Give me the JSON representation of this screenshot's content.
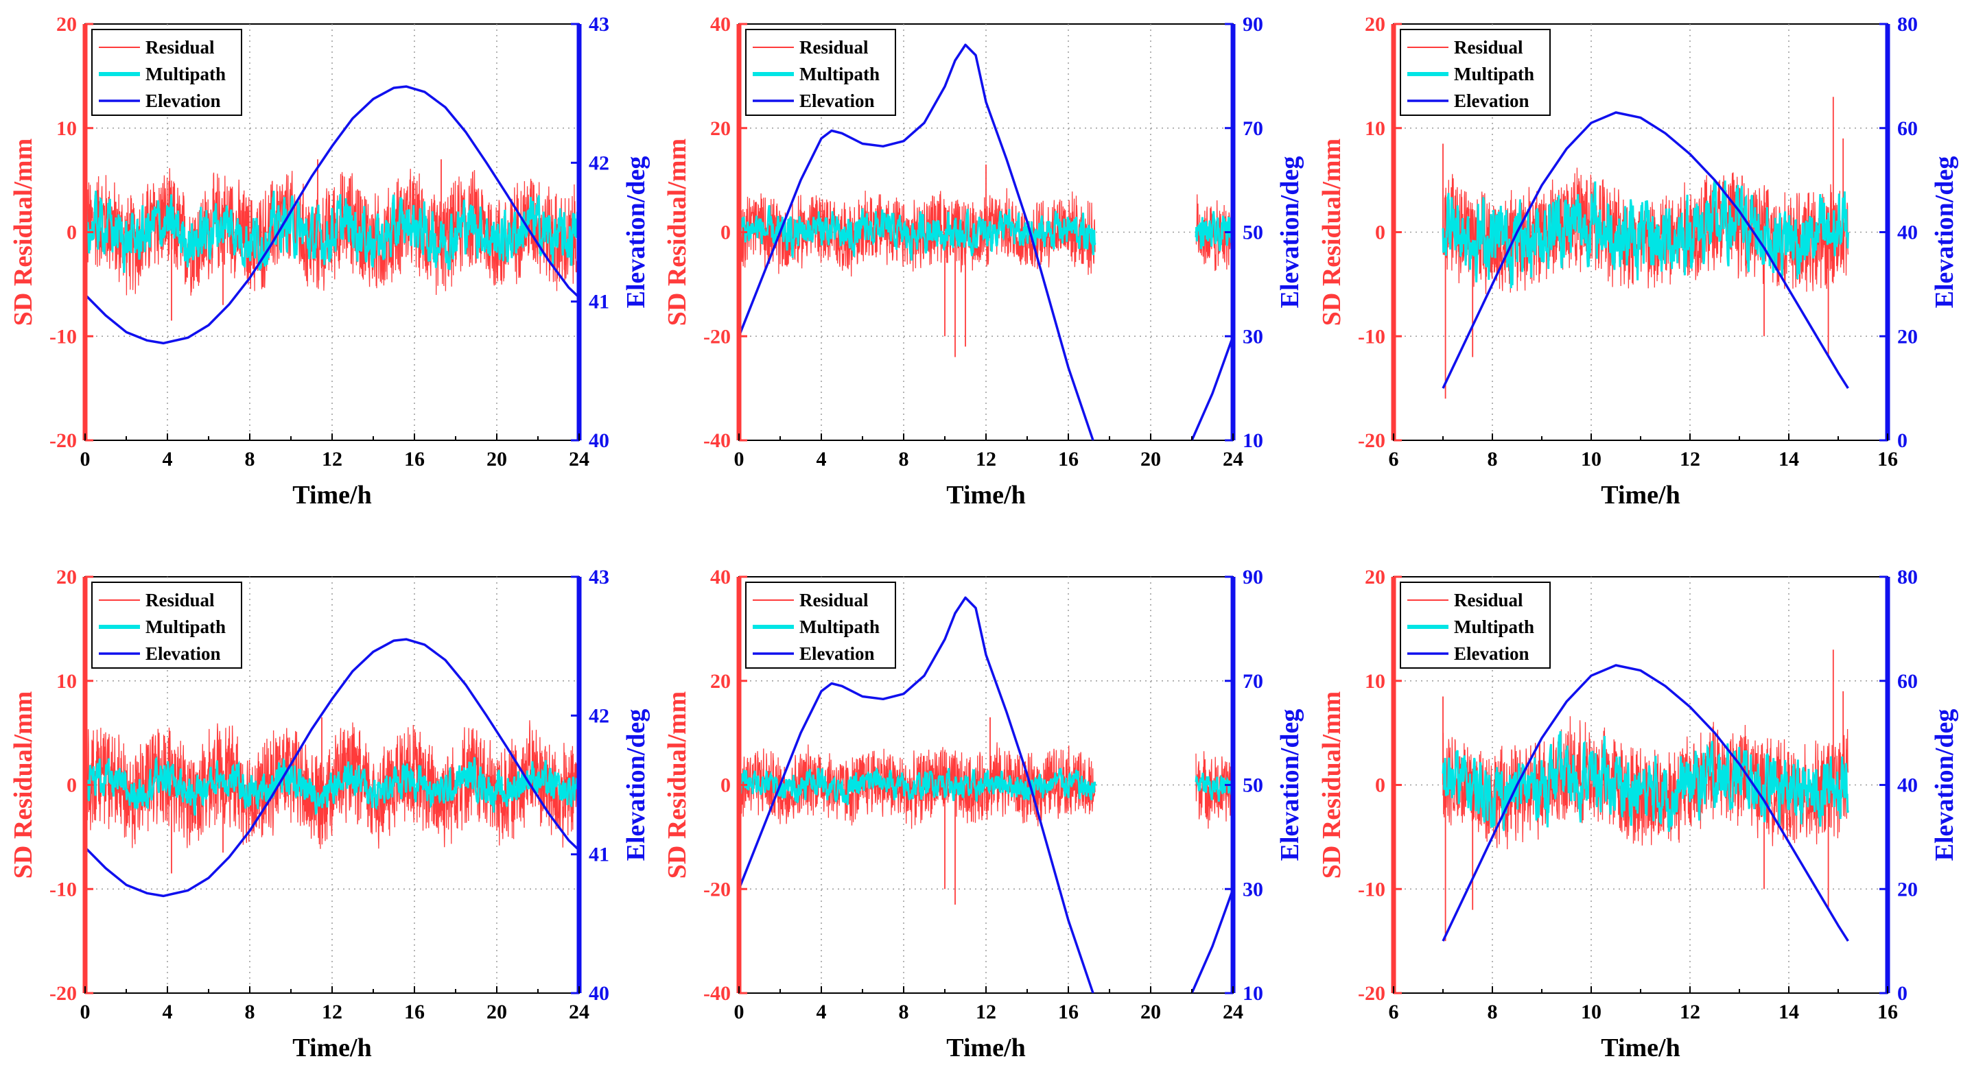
{
  "colors": {
    "residual": "#ff3b3b",
    "multipath": "#00e5e5",
    "elevation": "#1010ee",
    "left_axis": "#ff3b3b",
    "right_axis": "#1010ee",
    "grid": "#9a9a9a"
  },
  "chart_data": [
    {
      "type": "line",
      "xlabel": "Time/h",
      "ylabel": "SD Residual/mm",
      "y2label": "Elevation/deg",
      "xlim": [
        0,
        24
      ],
      "xticks": [
        0,
        4,
        8,
        12,
        16,
        20,
        24
      ],
      "ylim": [
        -20,
        20
      ],
      "yticks": [
        -20,
        -10,
        0,
        10,
        20
      ],
      "y2lim": [
        40,
        43
      ],
      "y2ticks": [
        40,
        41,
        42,
        43
      ],
      "legend": [
        "Residual",
        "Multipath",
        "Elevation"
      ],
      "legend_position": "top-left",
      "grid": true,
      "series": [
        {
          "name": "Residual",
          "axis": "left",
          "amplitude_mm": 5,
          "spikes": [
            [
              4.2,
              -8.5
            ],
            [
              6.7,
              -7
            ],
            [
              11.3,
              7
            ],
            [
              17.3,
              7
            ]
          ],
          "segments": [
            [
              0,
              24
            ]
          ]
        },
        {
          "name": "Multipath",
          "axis": "left",
          "amplitude_mm": 3,
          "segments": [
            [
              0,
              24
            ]
          ]
        },
        {
          "name": "Elevation",
          "axis": "right",
          "x": [
            0,
            1,
            2,
            3,
            3.8,
            5,
            6,
            7,
            8,
            9,
            10,
            11,
            12,
            13,
            14,
            15,
            15.6,
            16.5,
            17.5,
            18.5,
            19.5,
            20.5,
            21.5,
            22.5,
            23.5,
            24
          ],
          "y": [
            41.05,
            40.9,
            40.78,
            40.72,
            40.7,
            40.74,
            40.83,
            40.98,
            41.17,
            41.4,
            41.65,
            41.9,
            42.12,
            42.32,
            42.46,
            42.54,
            42.55,
            42.51,
            42.4,
            42.22,
            42.0,
            41.77,
            41.53,
            41.3,
            41.1,
            41.03
          ]
        }
      ]
    },
    {
      "type": "line",
      "xlabel": "Time/h",
      "ylabel": "SD Residual/mm",
      "y2label": "Elevation/deg",
      "xlim": [
        0,
        24
      ],
      "xticks": [
        0,
        4,
        8,
        12,
        16,
        20,
        24
      ],
      "ylim": [
        -40,
        40
      ],
      "yticks": [
        -40,
        -20,
        0,
        20,
        40
      ],
      "y2lim": [
        10,
        90
      ],
      "y2ticks": [
        10,
        30,
        50,
        70,
        90
      ],
      "legend": [
        "Residual",
        "Multipath",
        "Elevation"
      ],
      "legend_position": "top-left",
      "grid": true,
      "series": [
        {
          "name": "Residual",
          "axis": "left",
          "amplitude_mm": 7,
          "spikes": [
            [
              10.5,
              -24
            ],
            [
              11,
              -22
            ],
            [
              12,
              13
            ],
            [
              10,
              -20
            ]
          ],
          "segments": [
            [
              0,
              17.3
            ],
            [
              22.2,
              24
            ]
          ]
        },
        {
          "name": "Multipath",
          "axis": "left",
          "amplitude_mm": 4,
          "segments": [
            [
              0,
              17.3
            ],
            [
              22.2,
              24
            ]
          ]
        },
        {
          "name": "Elevation",
          "axis": "right",
          "x": [
            0,
            1,
            2,
            3,
            4,
            4.5,
            5,
            6,
            7,
            8,
            9,
            10,
            10.5,
            11,
            11.5,
            12,
            13,
            14,
            15,
            16,
            17.2
          ],
          "y": [
            30,
            40,
            50,
            60,
            68,
            69.5,
            69,
            67,
            66.5,
            67.5,
            71,
            78,
            83,
            86,
            84,
            75,
            64,
            52,
            38,
            24,
            10
          ]
        },
        {
          "name": "Elevation",
          "axis": "right",
          "x": [
            22,
            23,
            24
          ],
          "y": [
            10,
            19,
            30
          ]
        }
      ]
    },
    {
      "type": "line",
      "xlabel": "Time/h",
      "ylabel": "SD Residual/mm",
      "y2label": "Elevation/deg",
      "xlim": [
        6,
        16
      ],
      "xticks": [
        6,
        8,
        10,
        12,
        14,
        16
      ],
      "ylim": [
        -20,
        20
      ],
      "yticks": [
        -20,
        -10,
        0,
        10,
        20
      ],
      "y2lim": [
        0,
        80
      ],
      "y2ticks": [
        0,
        20,
        40,
        60,
        80
      ],
      "legend": [
        "Residual",
        "Multipath",
        "Elevation"
      ],
      "legend_position": "top-left",
      "grid": true,
      "series": [
        {
          "name": "Residual",
          "axis": "left",
          "amplitude_mm": 5,
          "spikes": [
            [
              7.0,
              8.5
            ],
            [
              7.05,
              -16
            ],
            [
              7.6,
              -12
            ],
            [
              14.9,
              13
            ],
            [
              14.8,
              -12
            ],
            [
              15.1,
              9
            ],
            [
              13.5,
              -10
            ]
          ],
          "segments": [
            [
              7,
              15.2
            ]
          ]
        },
        {
          "name": "Multipath",
          "axis": "left",
          "amplitude_mm": 4,
          "segments": [
            [
              7,
              15.2
            ]
          ]
        },
        {
          "name": "Elevation",
          "axis": "right",
          "x": [
            7,
            7.5,
            8,
            8.5,
            9,
            9.5,
            10,
            10.5,
            11,
            11.5,
            12,
            12.5,
            13,
            13.5,
            14,
            14.5,
            15,
            15.2
          ],
          "y": [
            10,
            20,
            30,
            40,
            49,
            56,
            61,
            63,
            62,
            59,
            55,
            50,
            44,
            37,
            29,
            21,
            13,
            10
          ]
        }
      ]
    },
    {
      "type": "line",
      "xlabel": "Time/h",
      "ylabel": "SD Residual/mm",
      "y2label": "Elevation/deg",
      "xlim": [
        0,
        24
      ],
      "xticks": [
        0,
        4,
        8,
        12,
        16,
        20,
        24
      ],
      "ylim": [
        -20,
        20
      ],
      "yticks": [
        -20,
        -10,
        0,
        10,
        20
      ],
      "y2lim": [
        40,
        43
      ],
      "y2ticks": [
        40,
        41,
        42,
        43
      ],
      "legend": [
        "Residual",
        "Multipath",
        "Elevation"
      ],
      "legend_position": "top-left",
      "grid": true,
      "series": [
        {
          "name": "Residual",
          "axis": "left",
          "amplitude_mm": 5,
          "spikes": [
            [
              4.2,
              -8.5
            ],
            [
              6.7,
              -6.5
            ],
            [
              11.5,
              6.5
            ]
          ],
          "segments": [
            [
              0,
              24
            ]
          ]
        },
        {
          "name": "Multipath",
          "axis": "left",
          "amplitude_mm": 2,
          "segments": [
            [
              0,
              24
            ]
          ]
        },
        {
          "name": "Elevation",
          "axis": "right",
          "x": [
            0,
            1,
            2,
            3,
            3.8,
            5,
            6,
            7,
            8,
            9,
            10,
            11,
            12,
            13,
            14,
            15,
            15.6,
            16.5,
            17.5,
            18.5,
            19.5,
            20.5,
            21.5,
            22.5,
            23.5,
            24
          ],
          "y": [
            41.05,
            40.9,
            40.78,
            40.72,
            40.7,
            40.74,
            40.83,
            40.98,
            41.17,
            41.4,
            41.65,
            41.9,
            42.12,
            42.32,
            42.46,
            42.54,
            42.55,
            42.51,
            42.4,
            42.22,
            42.0,
            41.77,
            41.53,
            41.3,
            41.1,
            41.03
          ]
        }
      ]
    },
    {
      "type": "line",
      "xlabel": "Time/h",
      "ylabel": "SD Residual/mm",
      "y2label": "Elevation/deg",
      "xlim": [
        0,
        24
      ],
      "xticks": [
        0,
        4,
        8,
        12,
        16,
        20,
        24
      ],
      "ylim": [
        -40,
        40
      ],
      "yticks": [
        -40,
        -20,
        0,
        20,
        40
      ],
      "y2lim": [
        10,
        90
      ],
      "y2ticks": [
        10,
        30,
        50,
        70,
        90
      ],
      "legend": [
        "Residual",
        "Multipath",
        "Elevation"
      ],
      "legend_position": "top-left",
      "grid": true,
      "series": [
        {
          "name": "Residual",
          "axis": "left",
          "amplitude_mm": 7,
          "spikes": [
            [
              10.5,
              -23
            ],
            [
              10,
              -20
            ],
            [
              12.2,
              13
            ]
          ],
          "segments": [
            [
              0,
              17.3
            ],
            [
              22.2,
              24
            ]
          ]
        },
        {
          "name": "Multipath",
          "axis": "left",
          "amplitude_mm": 3,
          "segments": [
            [
              0,
              17.3
            ],
            [
              22.2,
              24
            ]
          ]
        },
        {
          "name": "Elevation",
          "axis": "right",
          "x": [
            0,
            1,
            2,
            3,
            4,
            4.5,
            5,
            6,
            7,
            8,
            9,
            10,
            10.5,
            11,
            11.5,
            12,
            13,
            14,
            15,
            16,
            17.2
          ],
          "y": [
            30,
            40,
            50,
            60,
            68,
            69.5,
            69,
            67,
            66.5,
            67.5,
            71,
            78,
            83,
            86,
            84,
            75,
            64,
            52,
            38,
            24,
            10
          ]
        },
        {
          "name": "Elevation",
          "axis": "right",
          "x": [
            22,
            23,
            24
          ],
          "y": [
            10,
            19,
            30
          ]
        }
      ]
    },
    {
      "type": "line",
      "xlabel": "Time/h",
      "ylabel": "SD Residual/mm",
      "y2label": "Elevation/deg",
      "xlim": [
        6,
        16
      ],
      "xticks": [
        6,
        8,
        10,
        12,
        14,
        16
      ],
      "ylim": [
        -20,
        20
      ],
      "yticks": [
        -20,
        -10,
        0,
        10,
        20
      ],
      "y2lim": [
        0,
        80
      ],
      "y2ticks": [
        0,
        20,
        40,
        60,
        80
      ],
      "legend": [
        "Residual",
        "Multipath",
        "Elevation"
      ],
      "legend_position": "top-left",
      "grid": true,
      "series": [
        {
          "name": "Residual",
          "axis": "left",
          "amplitude_mm": 5,
          "spikes": [
            [
              7.0,
              8.5
            ],
            [
              7.05,
              -15
            ],
            [
              7.6,
              -12
            ],
            [
              14.9,
              13
            ],
            [
              14.8,
              -12
            ],
            [
              15.1,
              9
            ],
            [
              13.5,
              -10
            ]
          ],
          "segments": [
            [
              7,
              15.2
            ]
          ]
        },
        {
          "name": "Multipath",
          "axis": "left",
          "amplitude_mm": 3.5,
          "segments": [
            [
              7,
              15.2
            ]
          ]
        },
        {
          "name": "Elevation",
          "axis": "right",
          "x": [
            7,
            7.5,
            8,
            8.5,
            9,
            9.5,
            10,
            10.5,
            11,
            11.5,
            12,
            12.5,
            13,
            13.5,
            14,
            14.5,
            15,
            15.2
          ],
          "y": [
            10,
            20,
            30,
            40,
            49,
            56,
            61,
            63,
            62,
            59,
            55,
            50,
            44,
            37,
            29,
            21,
            13,
            10
          ]
        }
      ]
    }
  ]
}
